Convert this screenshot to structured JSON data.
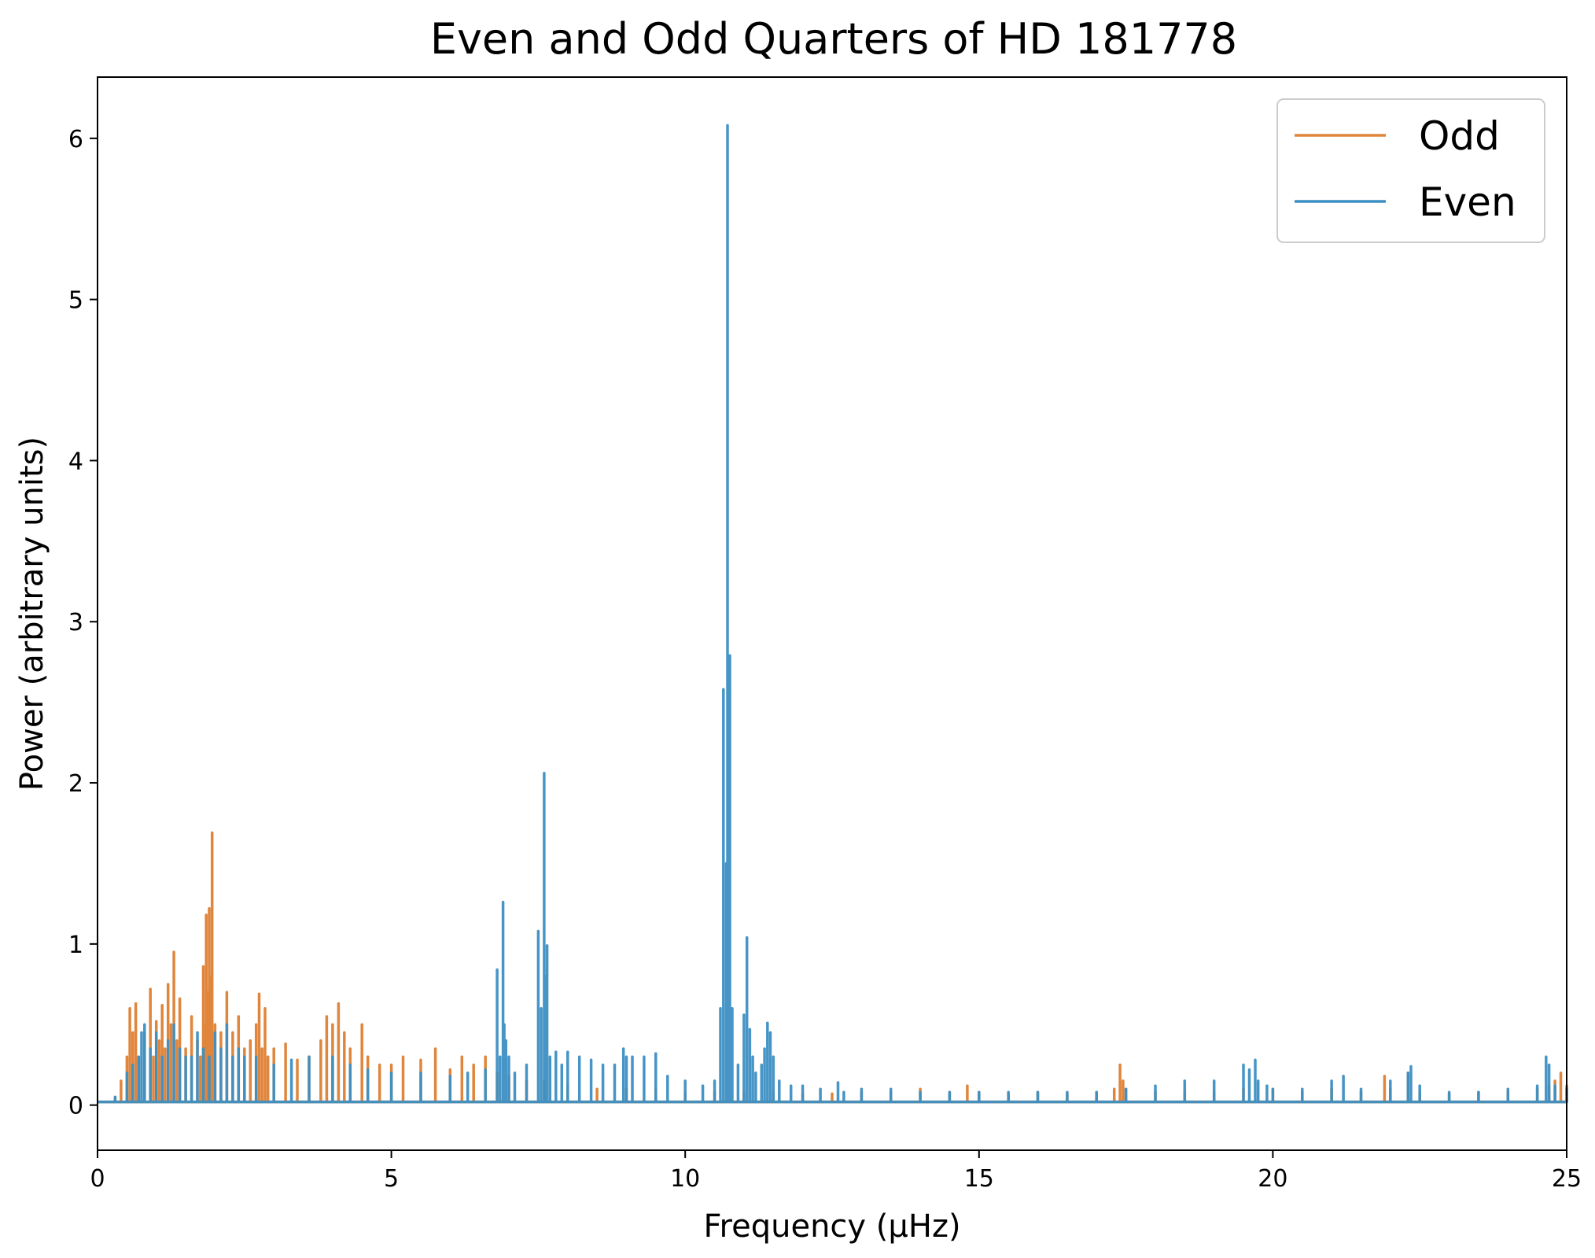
{
  "chart_data": {
    "type": "line",
    "title": "Even and Odd Quarters of HD 181778",
    "xlabel": "Frequency (μHz)",
    "ylabel": "Power (arbitrary units)",
    "xlim": [
      0,
      25
    ],
    "ylim": [
      -0.28,
      6.38
    ],
    "xticks": [
      0,
      5,
      10,
      15,
      20,
      25
    ],
    "xtick_labels": [
      "0",
      "5",
      "10",
      "15",
      "20",
      "25"
    ],
    "yticks": [
      0,
      1,
      2,
      3,
      4,
      5,
      6
    ],
    "ytick_labels": [
      "0",
      "1",
      "2",
      "3",
      "4",
      "5",
      "6"
    ],
    "grid": false,
    "legend_position": "top-right",
    "series": [
      {
        "name": "Odd",
        "color": "#e0853c",
        "x": [
          0.0,
          0.3,
          0.4,
          0.5,
          0.55,
          0.6,
          0.65,
          0.7,
          0.8,
          0.9,
          0.95,
          1.0,
          1.05,
          1.1,
          1.15,
          1.2,
          1.25,
          1.3,
          1.35,
          1.4,
          1.5,
          1.6,
          1.7,
          1.75,
          1.8,
          1.83,
          1.85,
          1.88,
          1.9,
          1.92,
          1.95,
          2.0,
          2.1,
          2.2,
          2.3,
          2.4,
          2.5,
          2.6,
          2.7,
          2.75,
          2.8,
          2.85,
          2.9,
          3.0,
          3.2,
          3.4,
          3.6,
          3.8,
          3.9,
          4.0,
          4.1,
          4.2,
          4.3,
          4.5,
          4.6,
          4.8,
          5.0,
          5.2,
          5.5,
          5.75,
          6.0,
          6.2,
          6.4,
          6.6,
          6.8,
          7.0,
          7.3,
          7.6,
          8.0,
          8.5,
          9.0,
          9.5,
          10.0,
          10.5,
          11.0,
          11.5,
          12.0,
          12.5,
          13.0,
          13.5,
          14.0,
          14.5,
          14.8,
          15.0,
          15.5,
          16.0,
          16.5,
          17.0,
          17.3,
          17.4,
          17.45,
          17.5,
          18.0,
          18.5,
          19.0,
          19.5,
          20.0,
          20.5,
          21.0,
          21.5,
          21.9,
          22.0,
          22.3,
          22.5,
          23.0,
          23.5,
          24.0,
          24.5,
          24.7,
          24.8,
          24.9,
          25.0
        ],
        "y": [
          0.02,
          0.05,
          0.15,
          0.3,
          0.6,
          0.45,
          0.63,
          0.3,
          0.45,
          0.72,
          0.3,
          0.52,
          0.4,
          0.62,
          0.35,
          0.75,
          0.5,
          0.95,
          0.4,
          0.66,
          0.35,
          0.55,
          0.4,
          0.3,
          0.86,
          0.5,
          1.18,
          0.7,
          1.22,
          0.8,
          1.69,
          0.5,
          0.45,
          0.7,
          0.45,
          0.55,
          0.35,
          0.4,
          0.5,
          0.69,
          0.35,
          0.6,
          0.3,
          0.35,
          0.38,
          0.28,
          0.3,
          0.4,
          0.55,
          0.5,
          0.63,
          0.45,
          0.35,
          0.5,
          0.3,
          0.25,
          0.25,
          0.3,
          0.28,
          0.35,
          0.22,
          0.3,
          0.25,
          0.3,
          0.2,
          0.18,
          0.15,
          0.15,
          0.12,
          0.1,
          0.1,
          0.1,
          0.08,
          0.08,
          0.08,
          0.08,
          0.07,
          0.07,
          0.08,
          0.08,
          0.1,
          0.08,
          0.12,
          0.08,
          0.07,
          0.08,
          0.07,
          0.08,
          0.1,
          0.25,
          0.15,
          0.1,
          0.08,
          0.08,
          0.08,
          0.1,
          0.1,
          0.08,
          0.1,
          0.08,
          0.18,
          0.1,
          0.2,
          0.08,
          0.07,
          0.08,
          0.08,
          0.1,
          0.12,
          0.15,
          0.2,
          0.12
        ]
      },
      {
        "name": "Even",
        "color": "#3c8fc3",
        "x": [
          0.0,
          0.3,
          0.5,
          0.6,
          0.7,
          0.75,
          0.8,
          0.9,
          1.0,
          1.1,
          1.2,
          1.3,
          1.4,
          1.5,
          1.6,
          1.7,
          1.8,
          1.9,
          2.0,
          2.1,
          2.2,
          2.3,
          2.4,
          2.5,
          2.7,
          3.0,
          3.3,
          3.6,
          4.0,
          4.3,
          4.6,
          5.0,
          5.5,
          6.0,
          6.3,
          6.6,
          6.8,
          6.85,
          6.9,
          6.92,
          6.95,
          7.0,
          7.1,
          7.3,
          7.5,
          7.55,
          7.6,
          7.62,
          7.65,
          7.7,
          7.8,
          7.9,
          8.0,
          8.2,
          8.4,
          8.6,
          8.8,
          8.95,
          9.0,
          9.1,
          9.3,
          9.5,
          9.7,
          10.0,
          10.3,
          10.5,
          10.6,
          10.65,
          10.7,
          10.72,
          10.74,
          10.76,
          10.8,
          10.9,
          11.0,
          11.05,
          11.1,
          11.15,
          11.2,
          11.3,
          11.35,
          11.4,
          11.45,
          11.5,
          11.6,
          11.8,
          12.0,
          12.3,
          12.6,
          12.7,
          13.0,
          13.5,
          14.0,
          14.5,
          15.0,
          15.5,
          16.0,
          16.5,
          17.0,
          17.5,
          18.0,
          18.5,
          19.0,
          19.5,
          19.6,
          19.7,
          19.75,
          19.9,
          20.0,
          20.5,
          21.0,
          21.2,
          21.5,
          22.0,
          22.3,
          22.35,
          22.5,
          23.0,
          23.5,
          24.0,
          24.5,
          24.65,
          24.7,
          24.8,
          25.0
        ],
        "y": [
          0.02,
          0.05,
          0.2,
          0.25,
          0.3,
          0.45,
          0.5,
          0.35,
          0.45,
          0.3,
          0.4,
          0.5,
          0.35,
          0.3,
          0.3,
          0.45,
          0.35,
          0.3,
          0.45,
          0.35,
          0.5,
          0.3,
          0.35,
          0.3,
          0.3,
          0.25,
          0.28,
          0.3,
          0.3,
          0.25,
          0.22,
          0.2,
          0.2,
          0.18,
          0.2,
          0.22,
          0.84,
          0.3,
          1.26,
          0.5,
          0.4,
          0.3,
          0.2,
          0.25,
          1.08,
          0.6,
          2.06,
          0.8,
          0.99,
          0.3,
          0.33,
          0.25,
          0.33,
          0.3,
          0.28,
          0.25,
          0.25,
          0.35,
          0.3,
          0.3,
          0.3,
          0.32,
          0.18,
          0.15,
          0.12,
          0.15,
          0.6,
          2.58,
          1.5,
          6.08,
          2.2,
          2.79,
          0.6,
          0.25,
          0.56,
          1.04,
          0.47,
          0.3,
          0.2,
          0.25,
          0.35,
          0.51,
          0.45,
          0.3,
          0.15,
          0.12,
          0.12,
          0.1,
          0.14,
          0.08,
          0.1,
          0.1,
          0.08,
          0.08,
          0.08,
          0.08,
          0.08,
          0.08,
          0.08,
          0.1,
          0.12,
          0.15,
          0.15,
          0.25,
          0.22,
          0.28,
          0.15,
          0.12,
          0.1,
          0.1,
          0.15,
          0.18,
          0.1,
          0.15,
          0.2,
          0.24,
          0.12,
          0.08,
          0.08,
          0.1,
          0.12,
          0.3,
          0.25,
          0.12,
          0.1
        ]
      }
    ]
  }
}
